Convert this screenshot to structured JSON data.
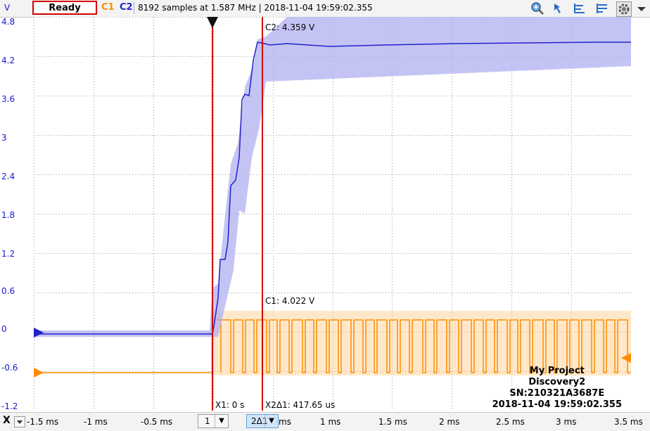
{
  "toolbar": {
    "unit": "V",
    "ready_label": "Ready",
    "channel1": "C1",
    "channel2": "C2",
    "info": "8192 samples at 1.587 MHz | 2018-11-04 19:59:02.355",
    "icons": [
      "zoom-icon",
      "cursor-icon",
      "align-left-icon",
      "align-right-icon",
      "settings-icon"
    ]
  },
  "yaxis": {
    "ticks": [
      "4.8",
      "4.2",
      "3.6",
      "3",
      "2.4",
      "1.8",
      "1.2",
      "0.6",
      "0",
      "-0.6",
      "-1.2"
    ]
  },
  "xaxis": {
    "label": "X",
    "ticks": [
      "-1.5 ms",
      "-1 ms",
      "-0.5 ms",
      "ms",
      "1 ms",
      "1.5 ms",
      "2 ms",
      "2.5 ms",
      "3 ms",
      "3.5 ms"
    ],
    "dropdown1": "1",
    "dropdown2": "2Δ1"
  },
  "cursors": {
    "c2_readout": "C2: 4.359 V",
    "c1_readout": "C1: 4.022 V",
    "x1_label": "X1: 0 s",
    "x2_label": "X2Δ1: 417.65 us"
  },
  "device": {
    "project": "My Project",
    "model": "Discovery2",
    "serial": "SN:210321A3687E",
    "timestamp": "2018-11-04 19:59:02.355"
  },
  "colors": {
    "c1": "#ff8c00",
    "c2": "#2222cc",
    "cursor": "#d40000"
  }
}
